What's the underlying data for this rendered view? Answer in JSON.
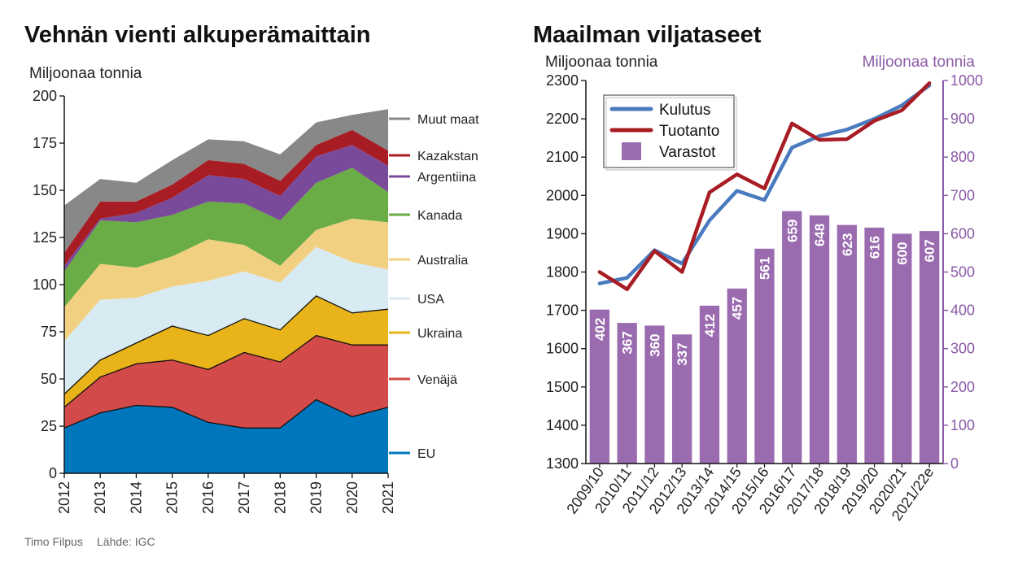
{
  "credit": {
    "author": "Timo Filpus",
    "source": "Lähde: IGC"
  },
  "colors": {
    "EU": "#0077bd",
    "Venäjä": "#d24a49",
    "Ukraina": "#e8b419",
    "USA": "#d9ebf2",
    "Australia": "#f2d082",
    "Kanada": "#6aac45",
    "Argentiina": "#7a4a9a",
    "Kazakstan": "#a81c24",
    "Muut maat": "#888888",
    "Kulutus": "#4a7bbe",
    "Tuotanto": "#a81c24",
    "Varastot": "#9b6bb0",
    "right_axis": "#8c5ca8"
  },
  "chart_data": [
    {
      "type": "area",
      "stacked": true,
      "title": "Vehnän vienti alkuperämaittain",
      "ylabel": "Miljoonaa tonnia",
      "ylim": [
        0,
        200
      ],
      "yticks": [
        0,
        25,
        50,
        75,
        100,
        125,
        150,
        175,
        200
      ],
      "x": [
        "2012",
        "2013",
        "2014",
        "2015",
        "2016",
        "2017",
        "2018",
        "2019",
        "2020",
        "2021"
      ],
      "series": [
        {
          "name": "EU",
          "values": [
            24,
            32,
            36,
            35,
            27,
            24,
            24,
            39,
            30,
            35
          ]
        },
        {
          "name": "Venäjä",
          "values": [
            11,
            19,
            22,
            25,
            28,
            40,
            35,
            34,
            38,
            33
          ]
        },
        {
          "name": "Ukraina",
          "values": [
            7,
            9,
            11,
            18,
            18,
            18,
            17,
            21,
            17,
            19
          ]
        },
        {
          "name": "USA",
          "values": [
            28,
            32,
            24,
            21,
            29,
            25,
            25,
            26,
            27,
            21
          ]
        },
        {
          "name": "Australia",
          "values": [
            18,
            19,
            16,
            16,
            22,
            14,
            9,
            9,
            23,
            25
          ]
        },
        {
          "name": "Kanada",
          "values": [
            19,
            23,
            24,
            22,
            20,
            22,
            24,
            25,
            27,
            16
          ]
        },
        {
          "name": "Argentiina",
          "values": [
            3,
            1,
            5,
            9,
            14,
            13,
            13,
            14,
            12,
            14
          ]
        },
        {
          "name": "Kazakstan",
          "values": [
            7,
            9,
            6,
            7,
            8,
            8,
            8,
            6,
            8,
            8
          ]
        },
        {
          "name": "Muut maat",
          "values": [
            25,
            12,
            10,
            13,
            11,
            12,
            14,
            12,
            8,
            22
          ]
        }
      ]
    },
    {
      "type": "bar+line",
      "title": "Maailman viljataseet",
      "ylabel": "Miljoonaa tonnia",
      "ylabel_right": "Miljoonaa tonnia",
      "ylim": [
        1300,
        2300
      ],
      "yticks": [
        1300,
        1400,
        1500,
        1600,
        1700,
        1800,
        1900,
        2000,
        2100,
        2200,
        2300
      ],
      "ylim_right": [
        0,
        1000
      ],
      "yticks_right": [
        0,
        100,
        200,
        300,
        400,
        500,
        600,
        700,
        800,
        900,
        1000
      ],
      "categories": [
        "2009/10",
        "2010/11",
        "2011/12",
        "2012/13",
        "2013/14",
        "2014/15",
        "2015/16",
        "2016/17",
        "2017/18",
        "2018/19",
        "2019/20",
        "2020/21",
        "2021/22e"
      ],
      "legend": [
        "Kulutus",
        "Tuotanto",
        "Varastot"
      ],
      "series": [
        {
          "name": "Kulutus",
          "type": "line",
          "axis": "left",
          "values": [
            1770,
            1785,
            1857,
            1822,
            1935,
            2012,
            1988,
            2125,
            2155,
            2172,
            2200,
            2235,
            2287
          ]
        },
        {
          "name": "Tuotanto",
          "type": "line",
          "axis": "left",
          "values": [
            1800,
            1755,
            1855,
            1800,
            2008,
            2055,
            2018,
            2188,
            2145,
            2147,
            2195,
            2222,
            2293
          ]
        },
        {
          "name": "Varastot",
          "type": "bar",
          "axis": "right",
          "values": [
            402,
            367,
            360,
            337,
            412,
            457,
            561,
            659,
            648,
            623,
            616,
            600,
            607
          ]
        }
      ]
    }
  ]
}
